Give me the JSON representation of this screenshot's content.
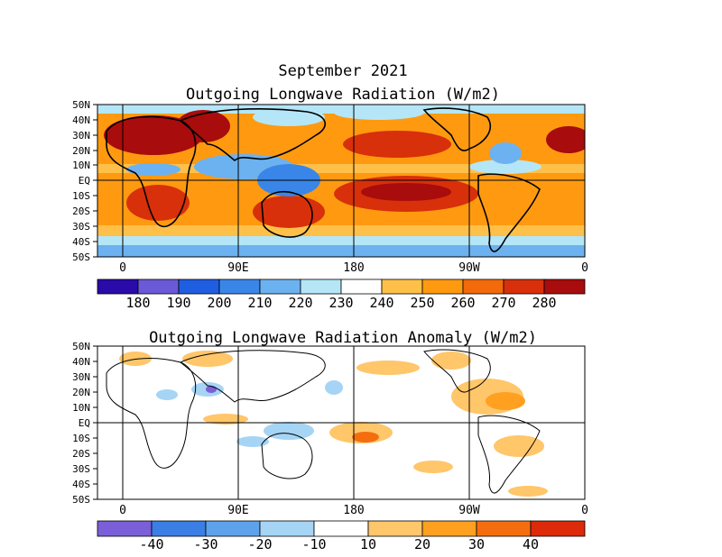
{
  "header": {
    "date": "September 2021"
  },
  "top_map": {
    "title": "Outgoing Longwave Radiation (W/m2)",
    "lat_labels": [
      "50N",
      "40N",
      "30N",
      "20N",
      "10N",
      "EQ",
      "10S",
      "20S",
      "30S",
      "40S",
      "50S"
    ],
    "lon_labels": [
      "0",
      "90E",
      "180",
      "90W",
      "0"
    ],
    "colorbar": {
      "labels": [
        "180",
        "190",
        "200",
        "210",
        "220",
        "230",
        "240",
        "250",
        "260",
        "270",
        "280"
      ],
      "colors": [
        "#2a0aa8",
        "#6a5ad6",
        "#1f5ee0",
        "#3a86e8",
        "#6cb2f0",
        "#b4e6f8",
        "#ffffff",
        "#ffc04a",
        "#ff9a10",
        "#f26a0a",
        "#d8300a",
        "#a80c0c"
      ]
    }
  },
  "bottom_map": {
    "title": "Outgoing Longwave Radiation Anomaly (W/m2)",
    "lat_labels": [
      "50N",
      "40N",
      "30N",
      "20N",
      "10N",
      "EQ",
      "10S",
      "20S",
      "30S",
      "40S",
      "50S"
    ],
    "lon_labels": [
      "0",
      "90E",
      "180",
      "90W",
      "0"
    ],
    "colorbar": {
      "labels": [
        "-40",
        "-30",
        "-20",
        "-10",
        "10",
        "20",
        "30",
        "40"
      ],
      "colors": [
        "#7b5fd8",
        "#3a7ee6",
        "#5ea2ec",
        "#a6d4f4",
        "#ffffff",
        "#ffc66a",
        "#ffa020",
        "#f46e10",
        "#dc2a0a"
      ]
    }
  }
}
